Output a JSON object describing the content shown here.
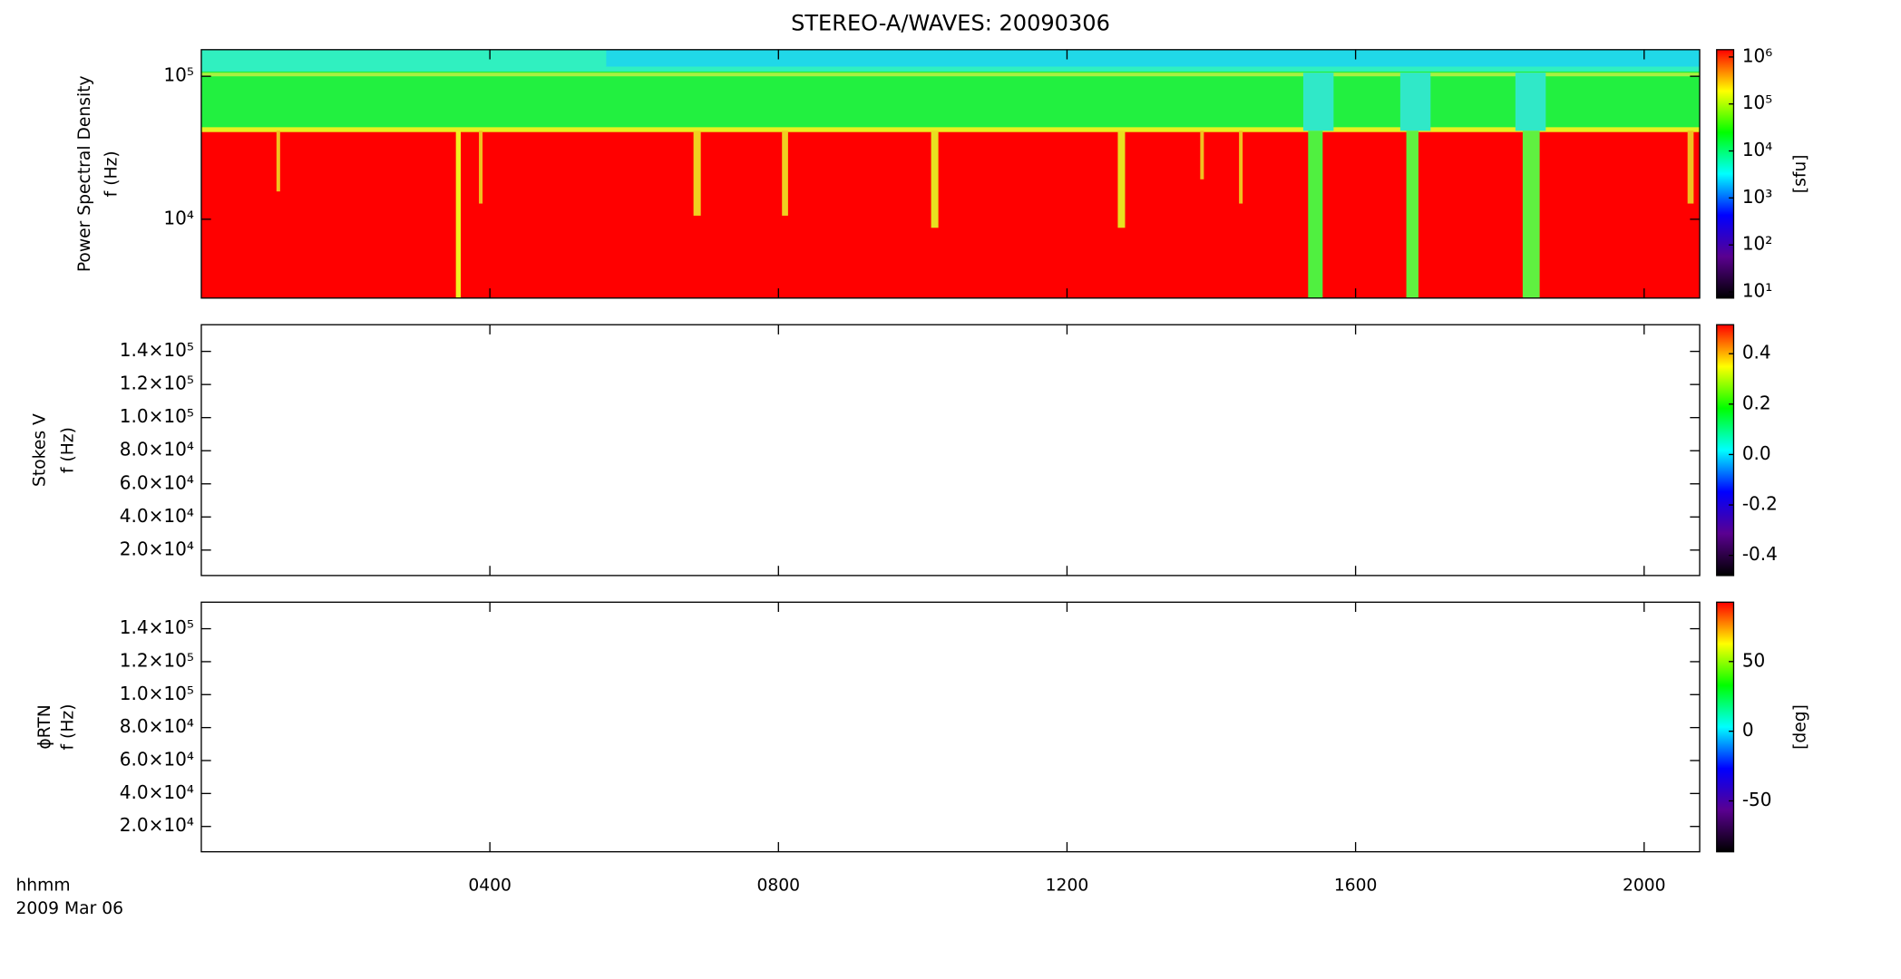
{
  "title": "STEREO-A/WAVES: 20090306",
  "x_unit_label": "hhmm",
  "date_label": "2009 Mar 06",
  "xlim": [
    0,
    20.77
  ],
  "xticks": [
    {
      "value": 4,
      "label": "0400"
    },
    {
      "value": 8,
      "label": "0800"
    },
    {
      "value": 12,
      "label": "1200"
    },
    {
      "value": 16,
      "label": "1600"
    },
    {
      "value": 20,
      "label": "2000"
    }
  ],
  "colormap": [
    "#000000",
    "#5a0090",
    "#0000ff",
    "#00ffff",
    "#00ff00",
    "#ffff00",
    "#ff0000"
  ],
  "chart_data": [
    {
      "type": "heatmap",
      "ylabel": [
        "Power Spectral Density",
        "f (Hz)"
      ],
      "log_y": true,
      "ylim": [
        2810,
        153500
      ],
      "yticks": [
        {
          "value": 10000,
          "label": "10⁴"
        },
        {
          "value": 100000,
          "label": "10⁵"
        }
      ],
      "colorbar": {
        "label": "[sfu]",
        "log": true,
        "lim": [
          7.4,
          1430000
        ],
        "ticks": [
          {
            "value": 10,
            "label": "10¹"
          },
          {
            "value": 100,
            "label": "10²"
          },
          {
            "value": 1000,
            "label": "10³"
          },
          {
            "value": 10000,
            "label": "10⁴"
          },
          {
            "value": 100000,
            "label": "10⁵"
          },
          {
            "value": 1000000,
            "label": "10⁶"
          }
        ]
      }
    },
    {
      "type": "heatmap",
      "ylabel": [
        "Stokes V",
        "f (Hz)"
      ],
      "log_y": false,
      "ylim": [
        4630,
        156100
      ],
      "yticks": [
        {
          "value": 20000,
          "label": "2.0×10⁴"
        },
        {
          "value": 40000,
          "label": "4.0×10⁴"
        },
        {
          "value": 60000,
          "label": "6.0×10⁴"
        },
        {
          "value": 80000,
          "label": "8.0×10⁴"
        },
        {
          "value": 100000,
          "label": "1.0×10⁵"
        },
        {
          "value": 120000,
          "label": "1.2×10⁵"
        },
        {
          "value": 140000,
          "label": "1.4×10⁵"
        }
      ],
      "colorbar": {
        "log": false,
        "lim": [
          -0.48,
          0.515
        ],
        "ticks": [
          -0.4,
          -0.2,
          {
            "value": 0,
            "label": "0.0"
          },
          0.2,
          0.4
        ]
      }
    },
    {
      "type": "heatmap",
      "ylabel": [
        "ϕRTN",
        "f (Hz)"
      ],
      "log_y": false,
      "ylim": [
        4630,
        156100
      ],
      "yticks": [
        {
          "value": 20000,
          "label": "2.0×10⁴"
        },
        {
          "value": 40000,
          "label": "4.0×10⁴"
        },
        {
          "value": 60000,
          "label": "6.0×10⁴"
        },
        {
          "value": 80000,
          "label": "8.0×10⁴"
        },
        {
          "value": 100000,
          "label": "1.0×10⁵"
        },
        {
          "value": 120000,
          "label": "1.2×10⁵"
        },
        {
          "value": 140000,
          "label": "1.4×10⁵"
        }
      ],
      "colorbar": {
        "label": "[deg]",
        "log": false,
        "lim": [
          -86.5,
          92.6
        ],
        "ticks": [
          -50,
          0,
          50
        ]
      }
    }
  ]
}
